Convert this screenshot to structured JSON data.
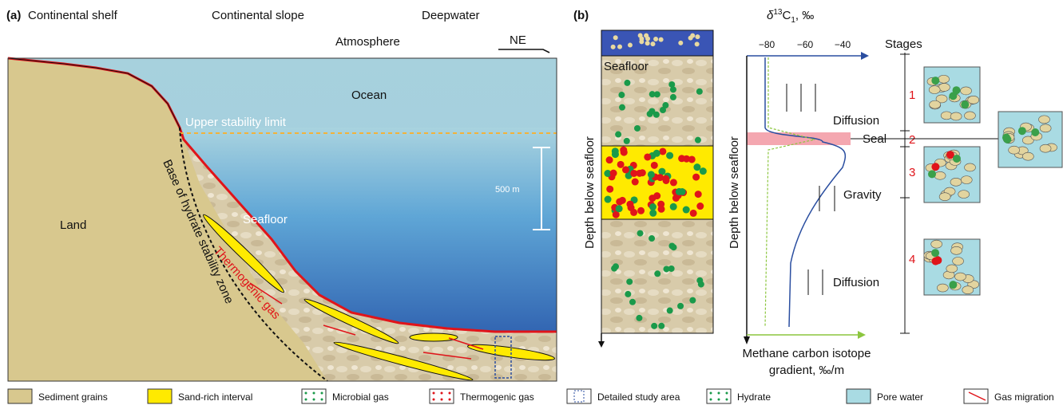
{
  "panel_a": {
    "label": "(a)",
    "zones": [
      "Continental shelf",
      "Continental slope",
      "Deepwater"
    ],
    "atmosphere": "Atmosphere",
    "direction": "NE",
    "ocean": "Ocean",
    "upper_stability_limit": "Upper stability limit",
    "scale": "500 m",
    "seafloor": "Seafloor",
    "land": "Land",
    "base_label": "Base of hydrate stability zone",
    "thermogenic_gas": "Thermogenic gas"
  },
  "panel_b": {
    "label": "(b)",
    "seafloor": "Seafloor",
    "depth_label": "Depth below seafloor",
    "isotope_axis": {
      "symbol": "δ",
      "superscript": "13",
      "element": "C",
      "subscript": "1",
      "unit": ", ‰",
      "ticks": [
        "−80",
        "−60",
        "−40"
      ]
    },
    "gradient_label": [
      "Methane carbon isotope",
      "gradient, ‰/m"
    ],
    "stages": {
      "title": "Stages",
      "numbers": [
        "1",
        "2",
        "3",
        "4"
      ],
      "processes": [
        "Diffusion",
        "Seal",
        "Gravity",
        "Diffusion"
      ]
    }
  },
  "legend": [
    "Sediment grains",
    "Sand-rich interval",
    "Microbial gas",
    "Thermogenic gas",
    "Detailed study area",
    "Hydrate",
    "Pore water",
    "Gas migration"
  ]
}
